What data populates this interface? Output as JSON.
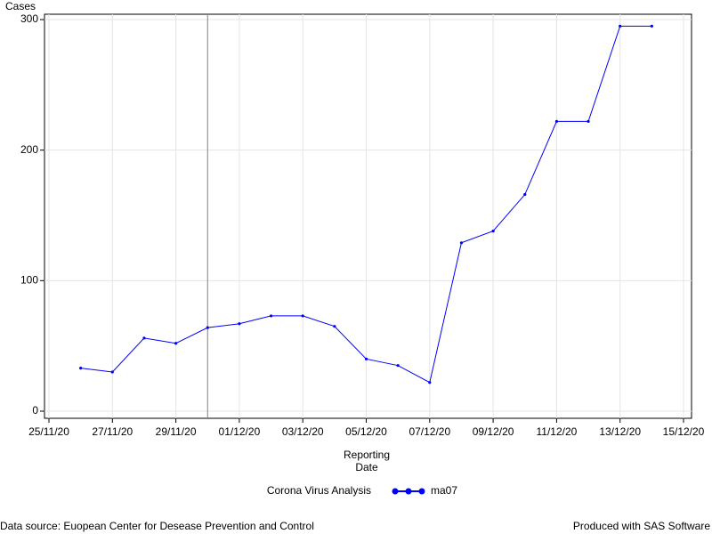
{
  "chart_data": {
    "type": "line",
    "y_label": "Cases",
    "x_label": [
      "Reporting",
      "Date"
    ],
    "legend_title": "Corona Virus Analysis",
    "footnote_left": "Data source: Euopean Center for Desease Prevention and Control",
    "footnote_right": "Produced with SAS Software",
    "x": [
      "26/11/20",
      "27/11/20",
      "28/11/20",
      "29/11/20",
      "30/11/20",
      "01/12/20",
      "02/12/20",
      "03/12/20",
      "04/12/20",
      "05/12/20",
      "06/12/20",
      "07/12/20",
      "08/12/20",
      "09/12/20",
      "10/12/20",
      "11/12/20",
      "12/12/20",
      "13/12/20",
      "14/12/20"
    ],
    "series": [
      {
        "name": "ma07",
        "color": "#0000ff",
        "values": [
          33,
          30,
          56,
          52,
          64,
          67,
          73,
          73,
          65,
          40,
          35,
          22,
          129,
          138,
          166,
          222,
          222,
          295,
          295
        ]
      }
    ],
    "xlim": [
      "25/11/20",
      "15/12/20"
    ],
    "xticks": [
      "25/11/20",
      "27/11/20",
      "29/11/20",
      "01/12/20",
      "03/12/20",
      "05/12/20",
      "07/12/20",
      "09/12/20",
      "11/12/20",
      "13/12/20",
      "15/12/20"
    ],
    "ylim": [
      0,
      300
    ],
    "yticks": [
      0,
      100,
      200,
      300
    ],
    "reference_x": "30/11/20",
    "grid": true
  }
}
